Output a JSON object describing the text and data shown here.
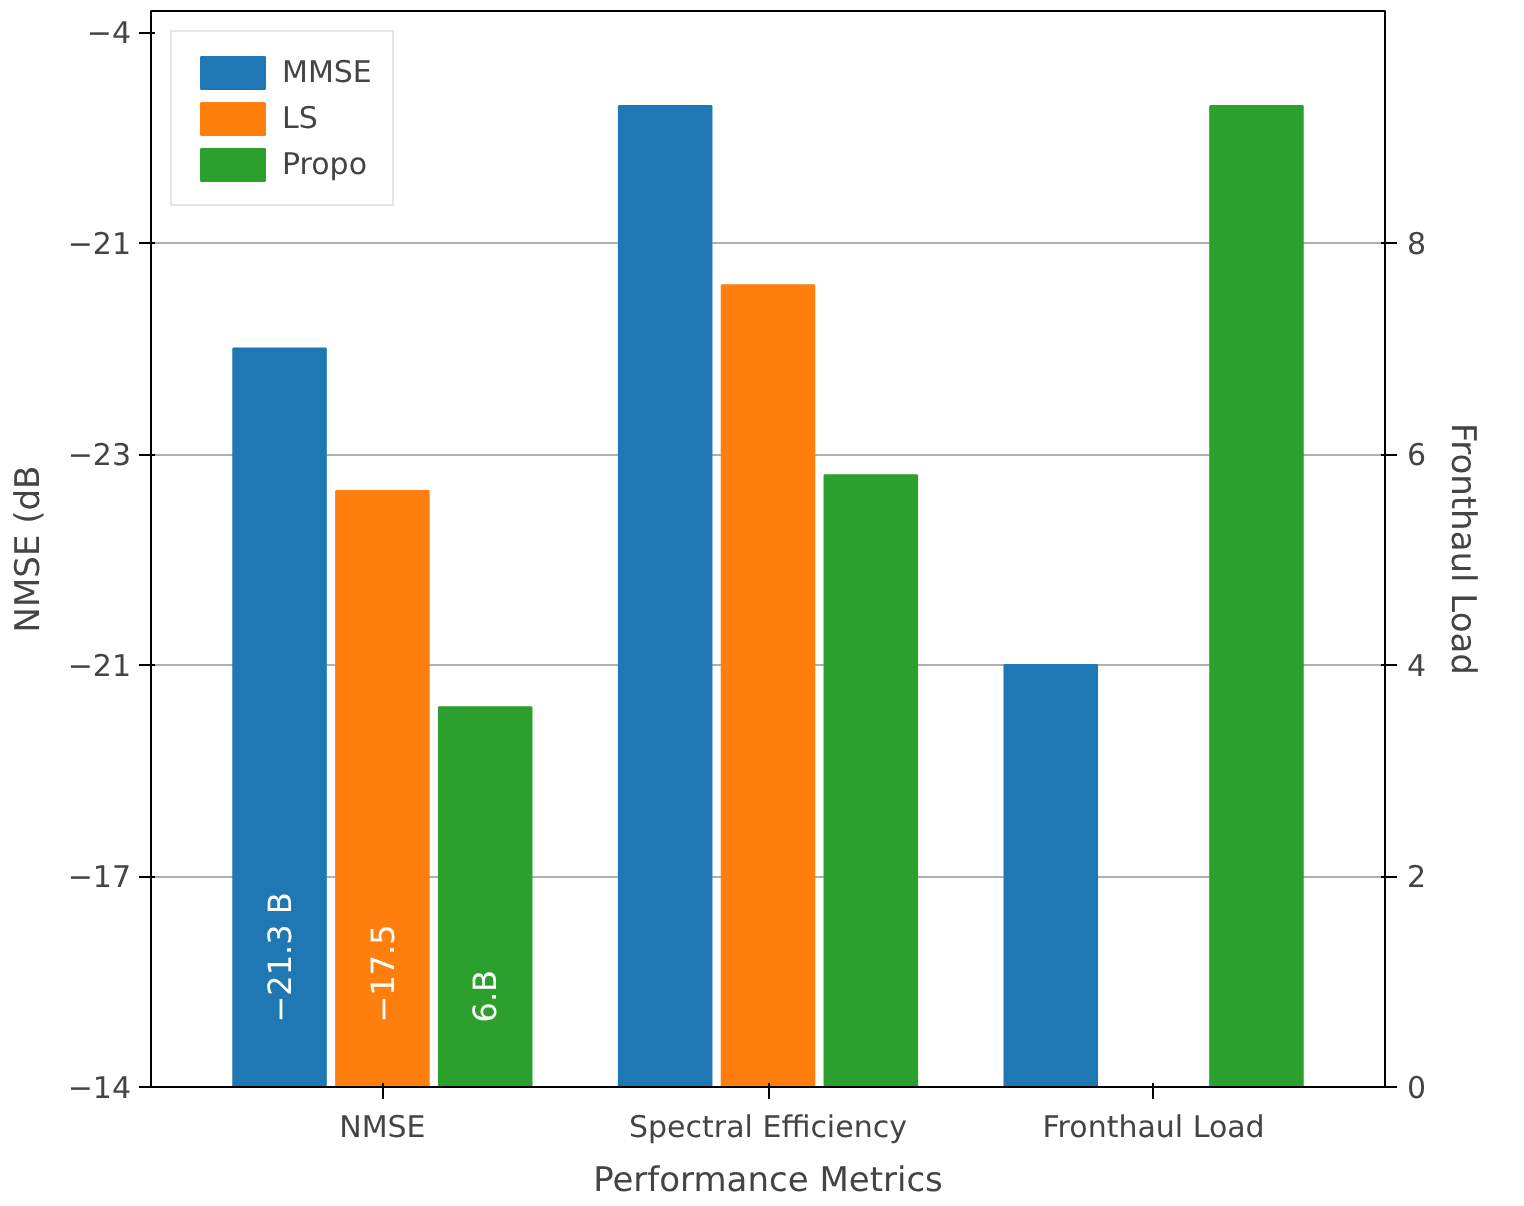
{
  "chart_data": {
    "type": "bar",
    "xlabel": "Performance Metrics",
    "ylabel": "NMSE (dB",
    "y2label": "Fronthaul Load",
    "categories": [
      "NMSE",
      "Spectral Efficiency",
      "Fronthaul Load"
    ],
    "series": [
      {
        "name": "MMSE",
        "color": "#1f77b4",
        "values": [
          7.0,
          9.3,
          4.0
        ]
      },
      {
        "name": "LS",
        "color": "#ff7f0e",
        "values": [
          5.65,
          7.6,
          null
        ]
      },
      {
        "name": "Propo",
        "color": "#2ca02c",
        "values": [
          3.6,
          5.8,
          9.3
        ]
      }
    ],
    "ylim": [
      0,
      10.2
    ],
    "yticks": [
      0,
      2,
      4,
      6,
      8
    ],
    "annotations": [
      "−14",
      "−17",
      "−21",
      "−23",
      "−21",
      "−4",
      "−21.3 B",
      "−17.5",
      "6.B"
    ],
    "grid": "y",
    "legend": "top left"
  }
}
